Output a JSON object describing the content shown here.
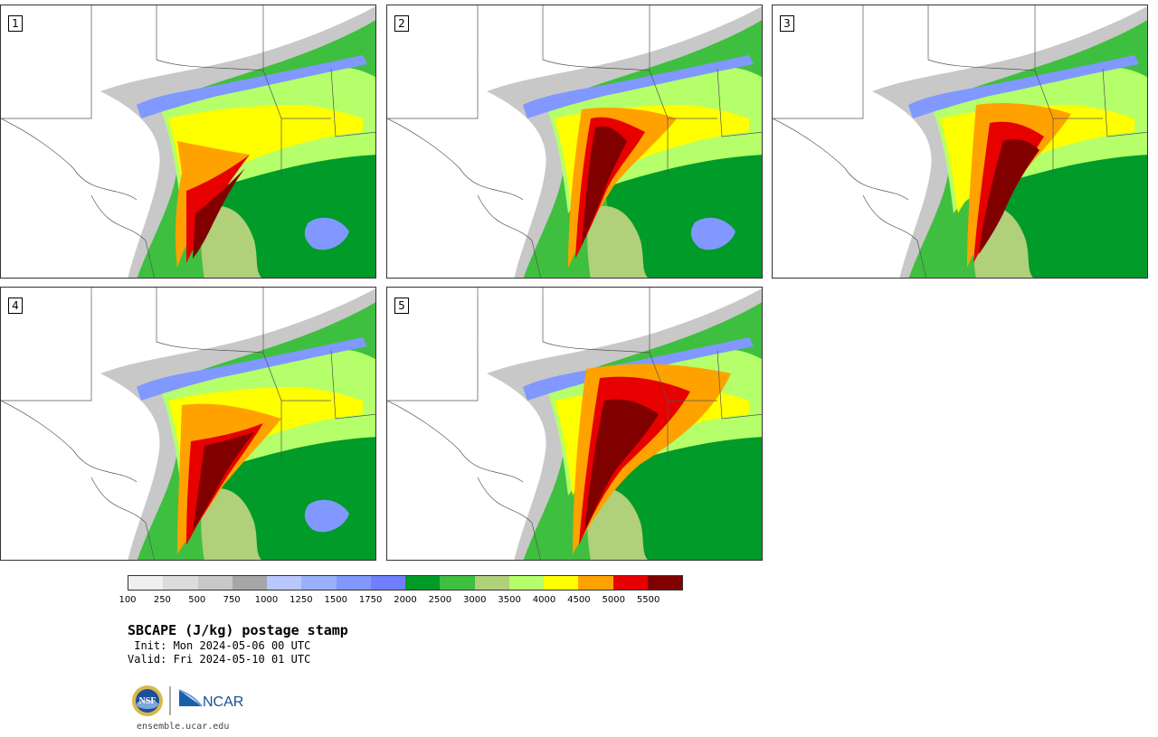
{
  "panels": [
    {
      "label": "1"
    },
    {
      "label": "2"
    },
    {
      "label": "3"
    },
    {
      "label": "4"
    },
    {
      "label": "5"
    }
  ],
  "colorbar": {
    "colors": [
      "#f0f0f0",
      "#dcdcdc",
      "#c8c8c8",
      "#a6a6a6",
      "#b8c8ff",
      "#98b0ff",
      "#8098ff",
      "#6f7fff",
      "#009b28",
      "#3fbf3f",
      "#b0d07a",
      "#b4ff6a",
      "#ffff00",
      "#ffa200",
      "#e60000",
      "#800000"
    ],
    "tick_labels": [
      "100",
      "250",
      "500",
      "750",
      "1000",
      "1250",
      "1500",
      "1750",
      "2000",
      "2500",
      "3000",
      "3500",
      "4000",
      "4500",
      "5000",
      "5500"
    ]
  },
  "title": "SBCAPE (J/kg) postage stamp",
  "init": " Init: Mon 2024-05-06 00 UTC",
  "valid": "Valid: Fri 2024-05-10 01 UTC",
  "logos": {
    "nsf": "NSF",
    "ncar": "NCAR"
  },
  "site": "ensemble.ucar.edu"
}
